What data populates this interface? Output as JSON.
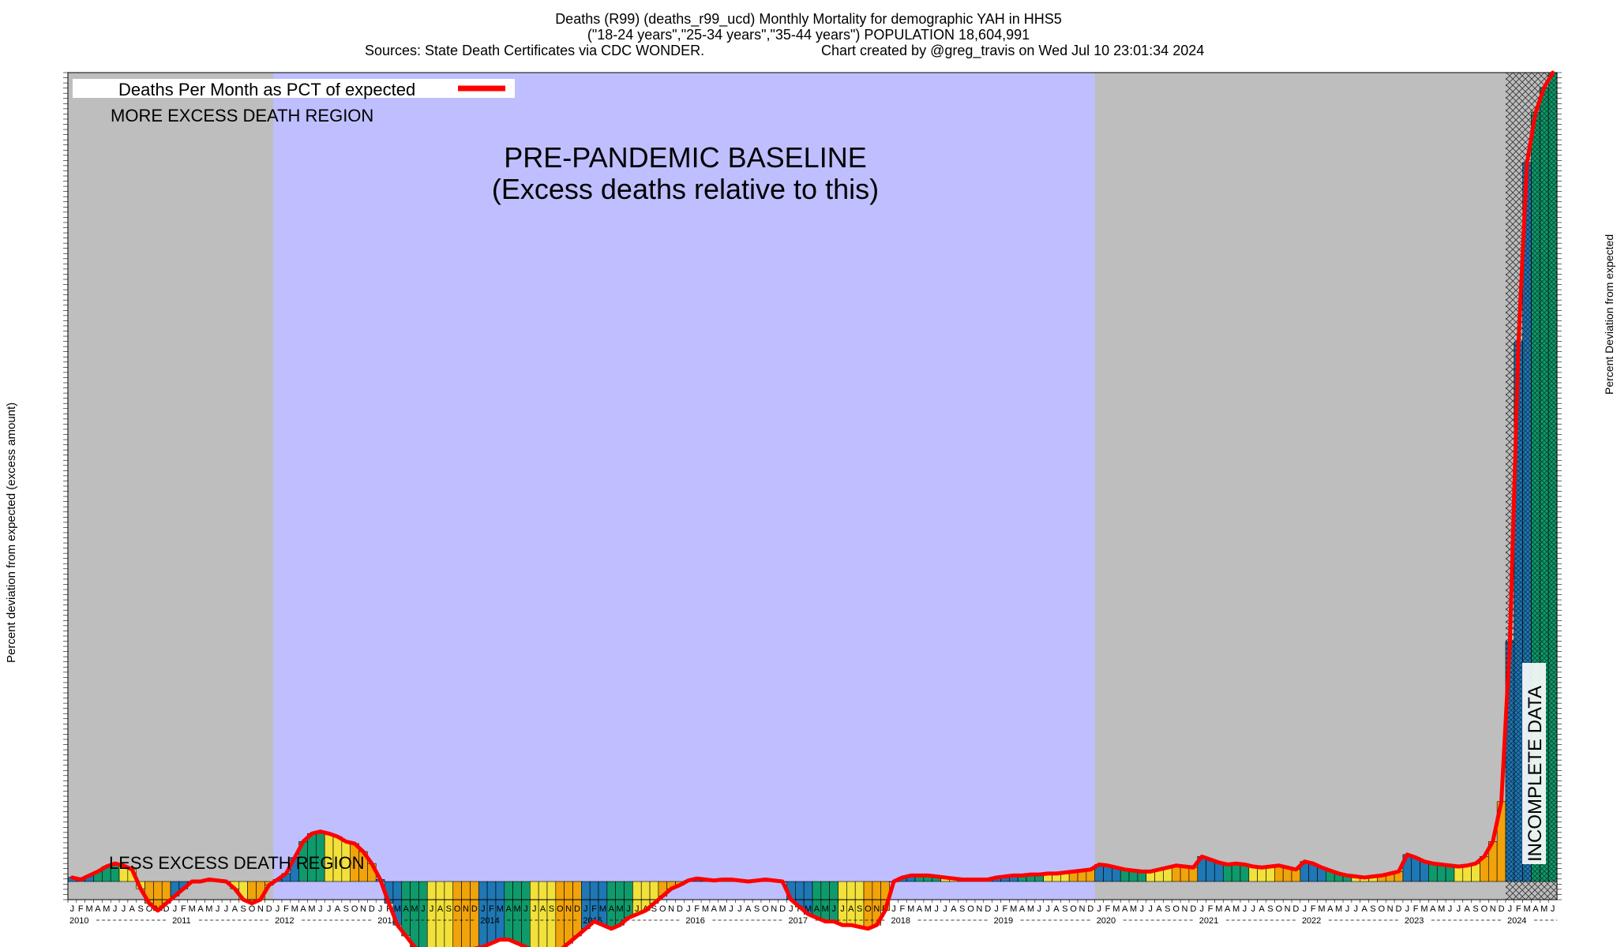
{
  "title": {
    "line1": "Deaths (R99) (deaths_r99_ucd) Monthly Mortality for demographic YAH in HHS5",
    "line2": "(\"18-24 years\",\"25-34 years\",\"35-44 years\") POPULATION 18,604,991",
    "sources": "Sources: State Death Certificates via CDC WONDER.",
    "credit": "Chart created by @greg_travis on Wed Jul 10 23:01:34 2024"
  },
  "legend": {
    "label": "Deaths Per Month as PCT of expected",
    "color": "#ff0000"
  },
  "annotations": {
    "more_excess": "MORE EXCESS DEATH REGION",
    "less_excess": "LESS EXCESS DEATH REGION",
    "baseline_line1": "PRE-PANDEMIC BASELINE",
    "baseline_line2": "(Excess deaths relative to this)",
    "incomplete": "INCOMPLETE DATA"
  },
  "axes": {
    "ylabel_left": "Percent deviation from expected (excess amount)",
    "ylabel_right": "Percent Deviation from expected"
  },
  "colors": {
    "baseline_region": "#bfbfff",
    "outside_region": "#bebebe",
    "bar_palette": [
      "#1f77b4",
      "#0f9a6b",
      "#f2e13a",
      "#f0a30a"
    ],
    "line": "#ff0000"
  },
  "chart_data": {
    "type": "bar",
    "x_start": "2010-01",
    "x_end": "2024-06",
    "years": [
      "2010",
      "2011",
      "2012",
      "2013",
      "2014",
      "2015",
      "2016",
      "2017",
      "2018",
      "2019",
      "2020",
      "2021",
      "2022",
      "2023",
      "2024"
    ],
    "month_letters": [
      "J",
      "F",
      "M",
      "A",
      "M",
      "J",
      "J",
      "A",
      "S",
      "O",
      "N",
      "D"
    ],
    "baseline_period": [
      "2012-01",
      "2019-12"
    ],
    "incomplete_period": [
      "2024-01",
      "2024-06"
    ],
    "ylim": [
      -50,
      8100
    ],
    "ylabel": "Percent deviation from expected (excess amount)",
    "series": [
      {
        "name": "Deaths Per Month as PCT of expected",
        "values": [
          40,
          20,
          60,
          100,
          150,
          180,
          160,
          120,
          -20,
          -60,
          -80,
          -60,
          -40,
          -20,
          0,
          0,
          20,
          10,
          0,
          -20,
          -50,
          -60,
          -50,
          -10,
          20,
          80,
          240,
          400,
          480,
          500,
          480,
          450,
          400,
          380,
          300,
          180,
          20,
          -60,
          -120,
          -150,
          -180,
          -200,
          -210,
          -215,
          -210,
          -200,
          -190,
          -185,
          -180,
          -170,
          -160,
          -160,
          -170,
          -180,
          -200,
          -220,
          -210,
          -190,
          -170,
          -150,
          -130,
          -110,
          -120,
          -130,
          -120,
          -100,
          -90,
          -80,
          -60,
          -40,
          -20,
          -10,
          10,
          30,
          20,
          10,
          20,
          20,
          10,
          0,
          10,
          20,
          10,
          0,
          -50,
          -70,
          -90,
          -100,
          -110,
          -110,
          -120,
          -120,
          -125,
          -130,
          -120,
          -80,
          0,
          40,
          60,
          60,
          60,
          50,
          40,
          30,
          20,
          20,
          20,
          20,
          40,
          50,
          60,
          60,
          70,
          70,
          80,
          80,
          90,
          100,
          110,
          120,
          170,
          160,
          140,
          120,
          110,
          100,
          100,
          120,
          140,
          160,
          150,
          140,
          250,
          220,
          190,
          170,
          180,
          170,
          150,
          140,
          150,
          160,
          140,
          120,
          200,
          180,
          140,
          110,
          80,
          60,
          50,
          40,
          50,
          60,
          80,
          100,
          270,
          240,
          200,
          180,
          170,
          160,
          150,
          160,
          180,
          250,
          400,
          800,
          2400,
          5400,
          7200,
          7700,
          7950,
          8100
        ]
      }
    ]
  }
}
